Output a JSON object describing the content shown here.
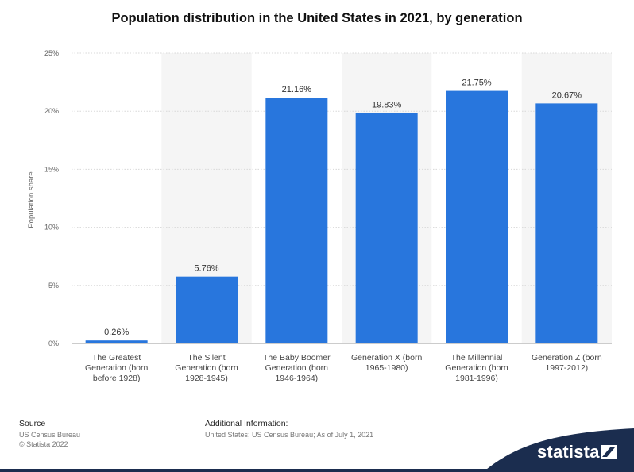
{
  "chart_data": {
    "type": "bar",
    "title": "Population distribution in the United States in 2021, by generation",
    "ylabel": "Population share",
    "ylim": [
      0,
      25
    ],
    "yticks": [
      0,
      5,
      10,
      15,
      20,
      25
    ],
    "ytick_labels": [
      "0%",
      "5%",
      "10%",
      "15%",
      "20%",
      "25%"
    ],
    "categories": [
      [
        "The Greatest",
        "Generation (born",
        "before 1928)"
      ],
      [
        "The Silent",
        "Generation (born",
        "1928-1945)"
      ],
      [
        "The Baby Boomer",
        "Generation (born",
        "1946-1964)"
      ],
      [
        "Generation X (born",
        "1965-1980)"
      ],
      [
        "The Millennial",
        "Generation (born",
        "1981-1996)"
      ],
      [
        "Generation Z (born",
        "1997-2012)"
      ]
    ],
    "values": [
      0.26,
      5.76,
      21.16,
      19.83,
      21.75,
      20.67
    ],
    "value_labels": [
      "0.26%",
      "5.76%",
      "21.16%",
      "19.83%",
      "21.75%",
      "20.67%"
    ],
    "grid": true,
    "bar_color": "#2876dd",
    "band_color": "#f5f5f5"
  },
  "footer": {
    "source_heading": "Source",
    "source_lines": [
      "US Census Bureau",
      "© Statista 2022"
    ],
    "additional_heading": "Additional Information:",
    "additional_text": "United States; US Census Bureau; As of July 1, 2021"
  },
  "brand": {
    "name": "statista",
    "icon": "statista-logo-icon",
    "color": "#1b2d4f"
  }
}
